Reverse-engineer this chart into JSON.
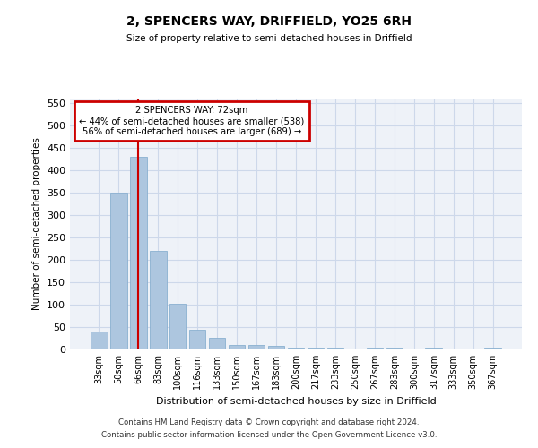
{
  "title": "2, SPENCERS WAY, DRIFFIELD, YO25 6RH",
  "subtitle": "Size of property relative to semi-detached houses in Driffield",
  "xlabel": "Distribution of semi-detached houses by size in Driffield",
  "ylabel": "Number of semi-detached properties",
  "footer1": "Contains HM Land Registry data © Crown copyright and database right 2024.",
  "footer2": "Contains public sector information licensed under the Open Government Licence v3.0.",
  "categories": [
    "33sqm",
    "50sqm",
    "66sqm",
    "83sqm",
    "100sqm",
    "116sqm",
    "133sqm",
    "150sqm",
    "167sqm",
    "183sqm",
    "200sqm",
    "217sqm",
    "233sqm",
    "250sqm",
    "267sqm",
    "283sqm",
    "300sqm",
    "317sqm",
    "333sqm",
    "350sqm",
    "367sqm"
  ],
  "values": [
    40,
    350,
    430,
    220,
    102,
    45,
    27,
    10,
    10,
    8,
    5,
    5,
    5,
    0,
    5,
    5,
    0,
    5,
    0,
    0,
    5
  ],
  "bar_color": "#adc6df",
  "bar_edge_color": "#8ab0d0",
  "grid_color": "#cdd8ea",
  "background_color": "#eef2f8",
  "annotation_line1": "2 SPENCERS WAY: 72sqm",
  "annotation_line2": "← 44% of semi-detached houses are smaller (538)",
  "annotation_line3": "56% of semi-detached houses are larger (689) →",
  "annotation_box_edge": "#cc0000",
  "vline_color": "#cc0000",
  "vline_x": 2.0,
  "ylim": [
    0,
    560
  ],
  "yticks": [
    0,
    50,
    100,
    150,
    200,
    250,
    300,
    350,
    400,
    450,
    500,
    550
  ]
}
